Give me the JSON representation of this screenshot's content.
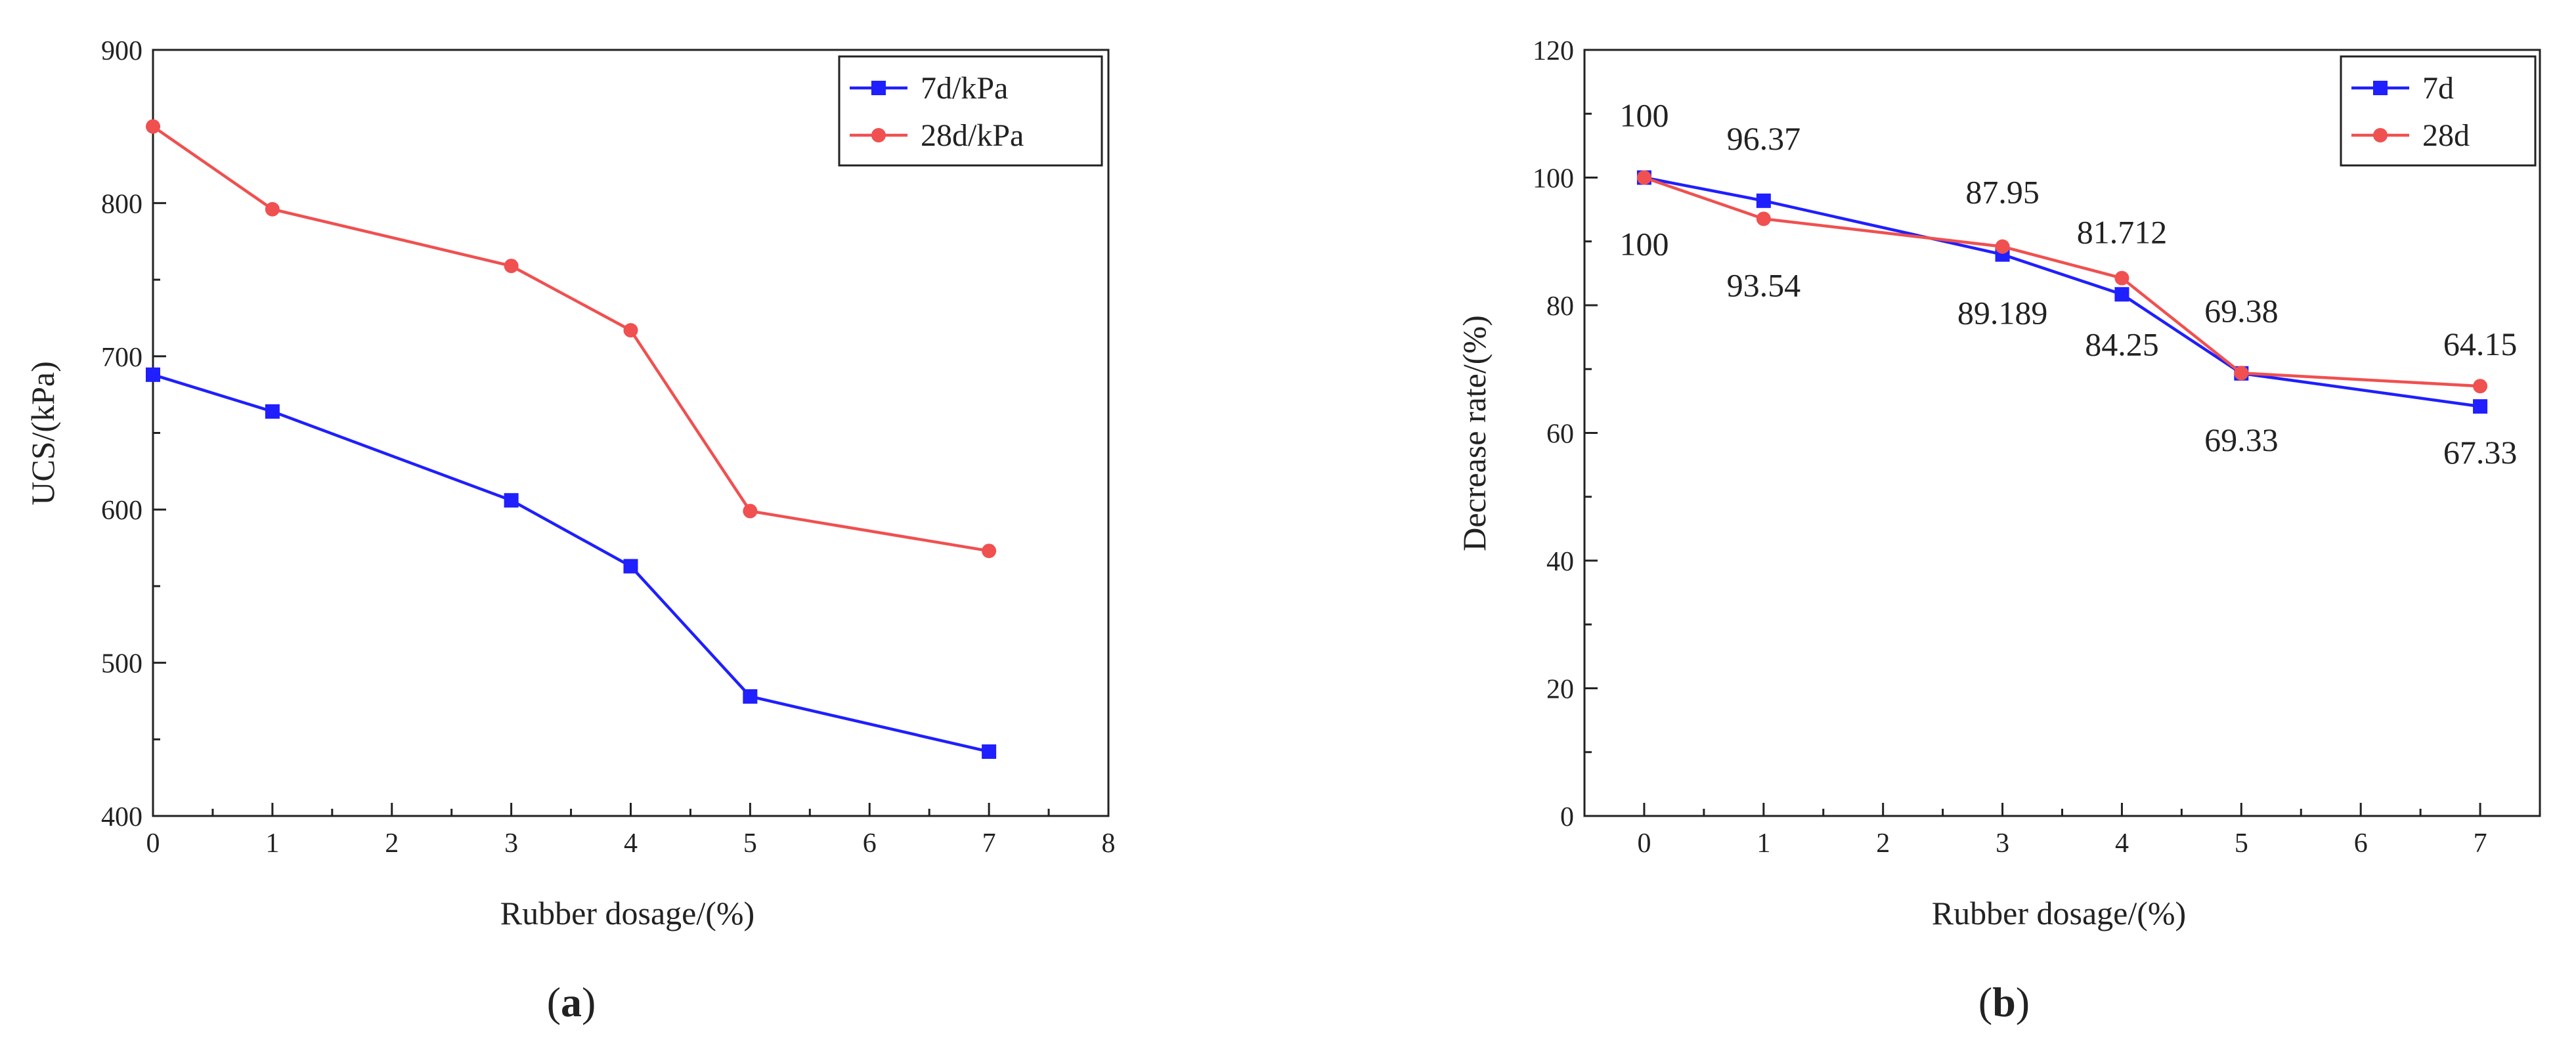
{
  "chart_data": [
    {
      "type": "line",
      "panel_label": {
        "open": "(",
        "letter": "a",
        "close": ")"
      },
      "xlabel": "Rubber dosage/(%)",
      "ylabel": "UCS/(kPa)",
      "xlim": [
        0,
        8
      ],
      "ylim": [
        400,
        900
      ],
      "xticks": [
        0,
        1,
        2,
        3,
        4,
        5,
        6,
        7,
        8
      ],
      "yticks": [
        400,
        500,
        600,
        700,
        800,
        900
      ],
      "legend_position": "top-right",
      "x": [
        0,
        1,
        3,
        4,
        5,
        7
      ],
      "series": [
        {
          "name": "7d/kPa",
          "color": "#1f1fff",
          "marker": "square",
          "values": [
            688,
            664,
            606,
            563,
            478,
            442
          ]
        },
        {
          "name": "28d/kPa",
          "color": "#f05050",
          "marker": "circle",
          "values": [
            850,
            796,
            759,
            717,
            599,
            573
          ]
        }
      ]
    },
    {
      "type": "line",
      "panel_label": {
        "open": "(",
        "letter": "b",
        "close": ")"
      },
      "xlabel": "Rubber dosage/(%)",
      "ylabel": "Decrease rate/(%)",
      "xlim": [
        -0.5,
        7.5
      ],
      "ylim": [
        0,
        120
      ],
      "xticks": [
        0,
        1,
        2,
        3,
        4,
        5,
        6,
        7
      ],
      "yticks": [
        0,
        20,
        40,
        60,
        80,
        100,
        120
      ],
      "legend_position": "top-right",
      "x": [
        0,
        1,
        3,
        4,
        5,
        7
      ],
      "series": [
        {
          "name": "7d",
          "color": "#1f1fff",
          "marker": "square",
          "values": [
            100,
            96.37,
            87.95,
            81.712,
            69.33,
            64.15
          ]
        },
        {
          "name": "28d",
          "color": "#f05050",
          "marker": "circle",
          "values": [
            100,
            93.54,
            89.189,
            84.25,
            69.38,
            67.33
          ]
        }
      ],
      "annotations": [
        {
          "text": "100",
          "x": 0,
          "series": "7d",
          "side": "above"
        },
        {
          "text": "96.37",
          "x": 1,
          "series": "7d",
          "side": "above"
        },
        {
          "text": "87.95",
          "x": 3,
          "series": "7d",
          "side": "above"
        },
        {
          "text": "81.712",
          "x": 4,
          "series": "7d",
          "side": "above"
        },
        {
          "text": "69.38",
          "x": 5,
          "series": "28d",
          "side": "above"
        },
        {
          "text": "64.15",
          "x": 7,
          "series": "7d",
          "side": "above"
        },
        {
          "text": "100",
          "x": 0,
          "series": "28d",
          "side": "below"
        },
        {
          "text": "93.54",
          "x": 1,
          "series": "28d",
          "side": "below"
        },
        {
          "text": "89.189",
          "x": 3,
          "series": "28d",
          "side": "below"
        },
        {
          "text": "84.25",
          "x": 4,
          "series": "28d",
          "side": "below"
        },
        {
          "text": "69.33",
          "x": 5,
          "series": "7d",
          "side": "below"
        },
        {
          "text": "67.33",
          "x": 7,
          "series": "28d",
          "side": "below"
        }
      ]
    }
  ]
}
